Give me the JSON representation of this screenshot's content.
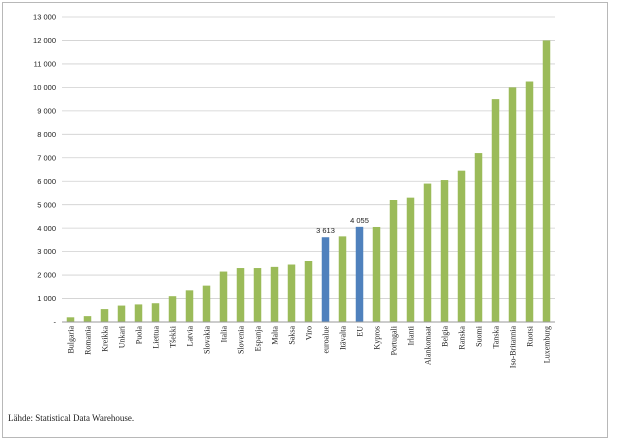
{
  "chart_data": {
    "type": "bar",
    "title": "",
    "xlabel": "",
    "ylabel": "",
    "ylim": [
      0,
      13000
    ],
    "yticks": [
      0,
      1000,
      2000,
      3000,
      4000,
      5000,
      6000,
      7000,
      8000,
      9000,
      10000,
      11000,
      12000,
      13000
    ],
    "ytick_labels": [
      "-",
      "1 000",
      "2 000",
      "3 000",
      "4 000",
      "5 000",
      "6 000",
      "7 000",
      "8 000",
      "9 000",
      "10 000",
      "11 000",
      "12 000",
      "13 000"
    ],
    "grid": true,
    "legend": "none",
    "categories": [
      "Bulgaria",
      "Romania",
      "Kreikka",
      "Unkari",
      "Puola",
      "Liettua",
      "Tšekki",
      "Latvia",
      "Slovakia",
      "Italia",
      "Slovenia",
      "Espanja",
      "Malta",
      "Saksa",
      "Viro",
      "euroalue",
      "Itävalta",
      "EU",
      "Kypros",
      "Portugali",
      "Irlanti",
      "Alankomaat",
      "Belgia",
      "Ranska",
      "Suomi",
      "Tanska",
      "Iso-Britannia",
      "Ruotsi",
      "Luxemburg"
    ],
    "values": [
      200,
      250,
      550,
      700,
      750,
      800,
      1100,
      1350,
      1550,
      2150,
      2300,
      2300,
      2350,
      2450,
      2600,
      3613,
      3650,
      4055,
      4050,
      5200,
      5300,
      5900,
      6050,
      6450,
      7200,
      9500,
      10000,
      10250,
      12000
    ],
    "highlight_categories": [
      "euroalue",
      "EU"
    ],
    "data_labels": [
      {
        "category": "euroalue",
        "text": "3 613"
      },
      {
        "category": "EU",
        "text": "4 055"
      }
    ],
    "colors": {
      "bar": "#9bbb59",
      "highlight": "#4f81bd",
      "grid": "#cfcfcf",
      "axis": "#9a9a9a"
    }
  },
  "source_note": "Lähde: Statistical Data Warehouse."
}
